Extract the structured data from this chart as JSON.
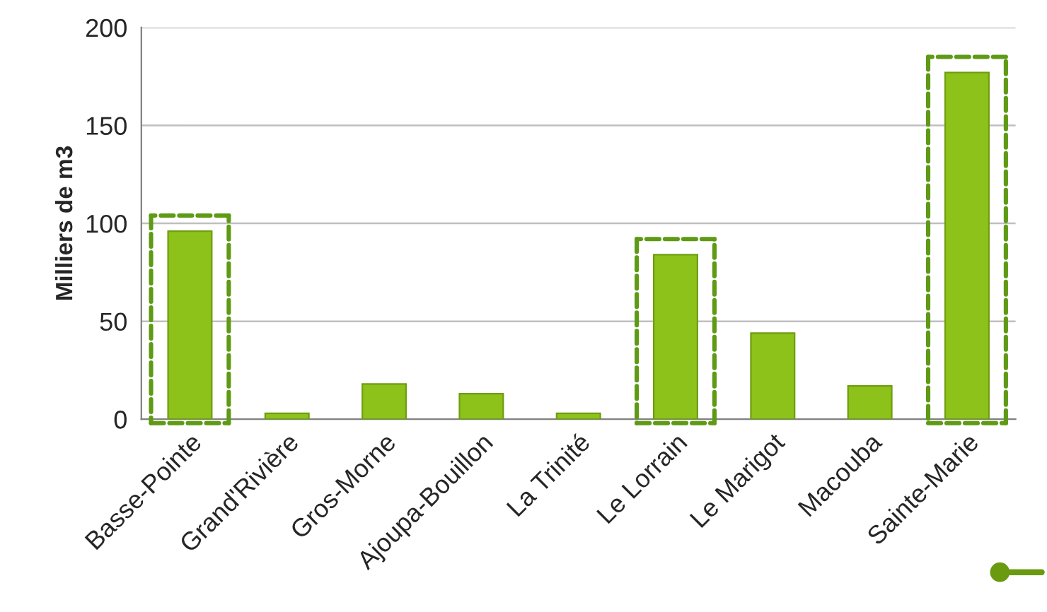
{
  "chart_data": {
    "type": "bar",
    "ylabel": "Milliers de m3",
    "categories": [
      "Basse-Pointe",
      "Grand'Rivière",
      "Gros-Morne",
      "Ajoupa-Bouillon",
      "La Trinité",
      "Le Lorrain",
      "Le Marigot",
      "Macouba",
      "Sainte-Marie"
    ],
    "values": [
      96,
      3,
      18,
      13,
      3,
      84,
      44,
      17,
      177
    ],
    "color": "#8cc21a",
    "ylim": [
      0,
      200
    ],
    "yticks": [
      0,
      50,
      100,
      150,
      200
    ],
    "grid": "y",
    "legend": false
  }
}
